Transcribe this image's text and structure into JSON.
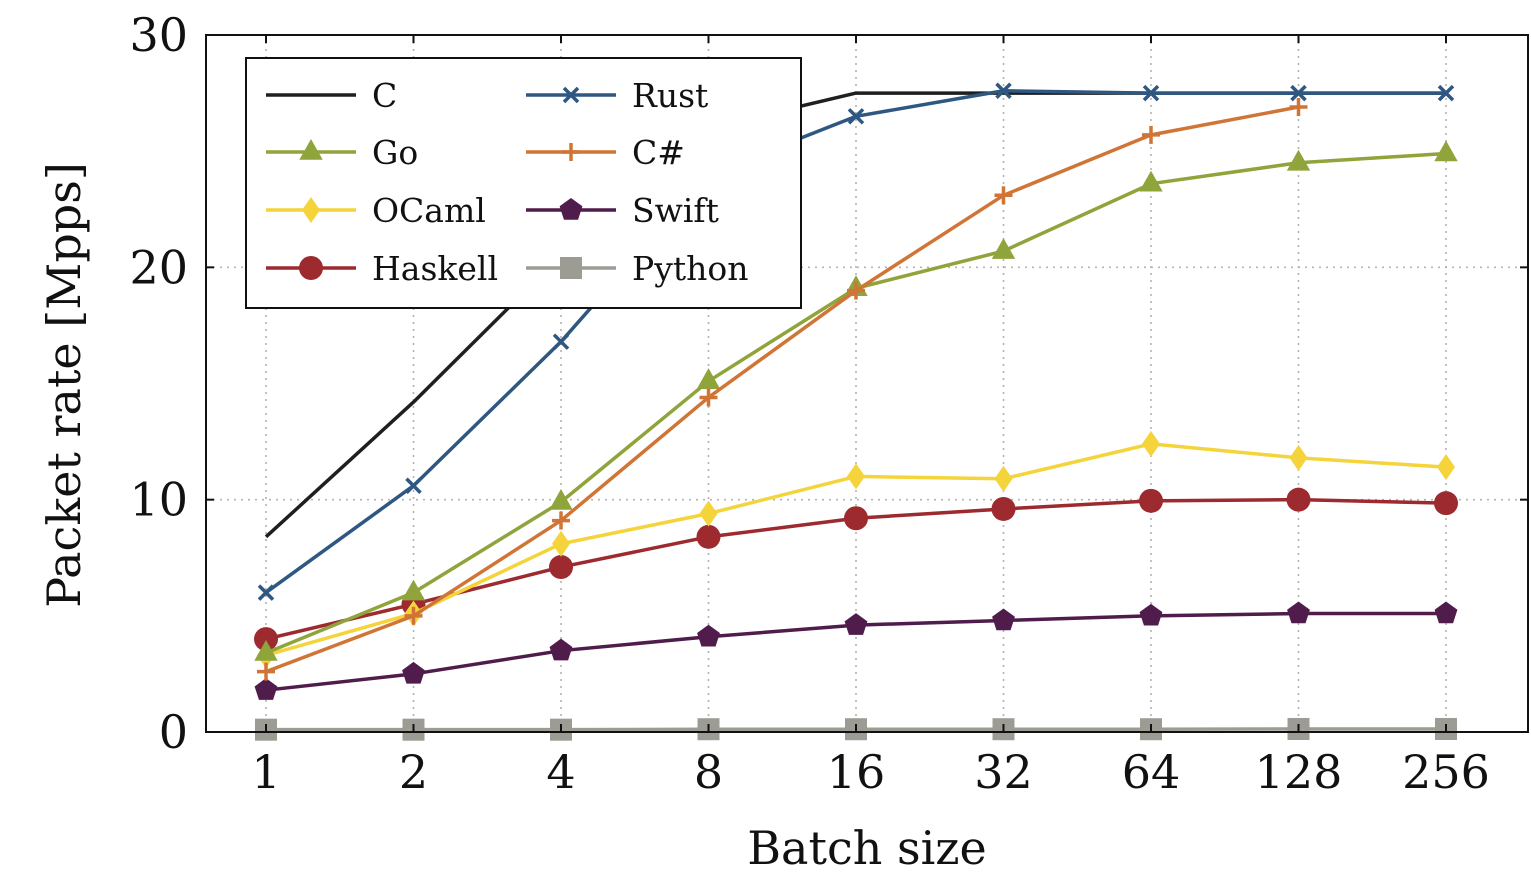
{
  "chart_data": {
    "type": "line",
    "xlabel": "Batch size",
    "ylabel": "Packet rate [Mpps]",
    "categories": [
      "1",
      "2",
      "4",
      "8",
      "16",
      "32",
      "64",
      "128",
      "256"
    ],
    "ylim": [
      0,
      30
    ],
    "yticks": [
      "0",
      "10",
      "20",
      "30"
    ],
    "grid": true,
    "legend_position": "top-left",
    "series": [
      {
        "name": "C",
        "color": "#1f1f1f",
        "marker": "none",
        "values": [
          8.4,
          14.2,
          20.5,
          26.0,
          27.5,
          27.5,
          27.5,
          27.5,
          27.5
        ]
      },
      {
        "name": "Rust",
        "color": "#2e5782",
        "marker": "x",
        "values": [
          6.0,
          10.6,
          16.8,
          24.0,
          26.5,
          27.6,
          27.5,
          27.5,
          27.5
        ]
      },
      {
        "name": "Go",
        "color": "#8fa43a",
        "marker": "triangle",
        "values": [
          3.4,
          6.0,
          9.9,
          15.1,
          19.1,
          20.7,
          23.6,
          24.5,
          24.9
        ]
      },
      {
        "name": "C#",
        "color": "#d07536",
        "marker": "plus",
        "values": [
          2.6,
          5.0,
          9.1,
          14.4,
          19.0,
          23.1,
          25.7,
          26.9,
          null
        ]
      },
      {
        "name": "OCaml",
        "color": "#f4d43a",
        "marker": "diamond",
        "values": [
          3.3,
          5.1,
          8.1,
          9.4,
          11.0,
          10.9,
          12.4,
          11.8,
          11.4
        ]
      },
      {
        "name": "Swift",
        "color": "#4f1c4b",
        "marker": "pentagon",
        "values": [
          1.8,
          2.5,
          3.5,
          4.1,
          4.6,
          4.8,
          5.0,
          5.1,
          5.1
        ]
      },
      {
        "name": "Haskell",
        "color": "#9d2a2e",
        "marker": "circle",
        "values": [
          4.0,
          5.5,
          7.1,
          8.4,
          9.2,
          9.6,
          9.95,
          10.0,
          9.85
        ]
      },
      {
        "name": "Python",
        "color": "#9c9c94",
        "marker": "square",
        "values": [
          0.1,
          0.1,
          0.1,
          0.12,
          0.12,
          0.12,
          0.12,
          0.13,
          0.13
        ]
      }
    ],
    "legend_order": [
      [
        "C",
        "Rust"
      ],
      [
        "Go",
        "C#"
      ],
      [
        "OCaml",
        "Swift"
      ],
      [
        "Haskell",
        "Python"
      ]
    ]
  }
}
